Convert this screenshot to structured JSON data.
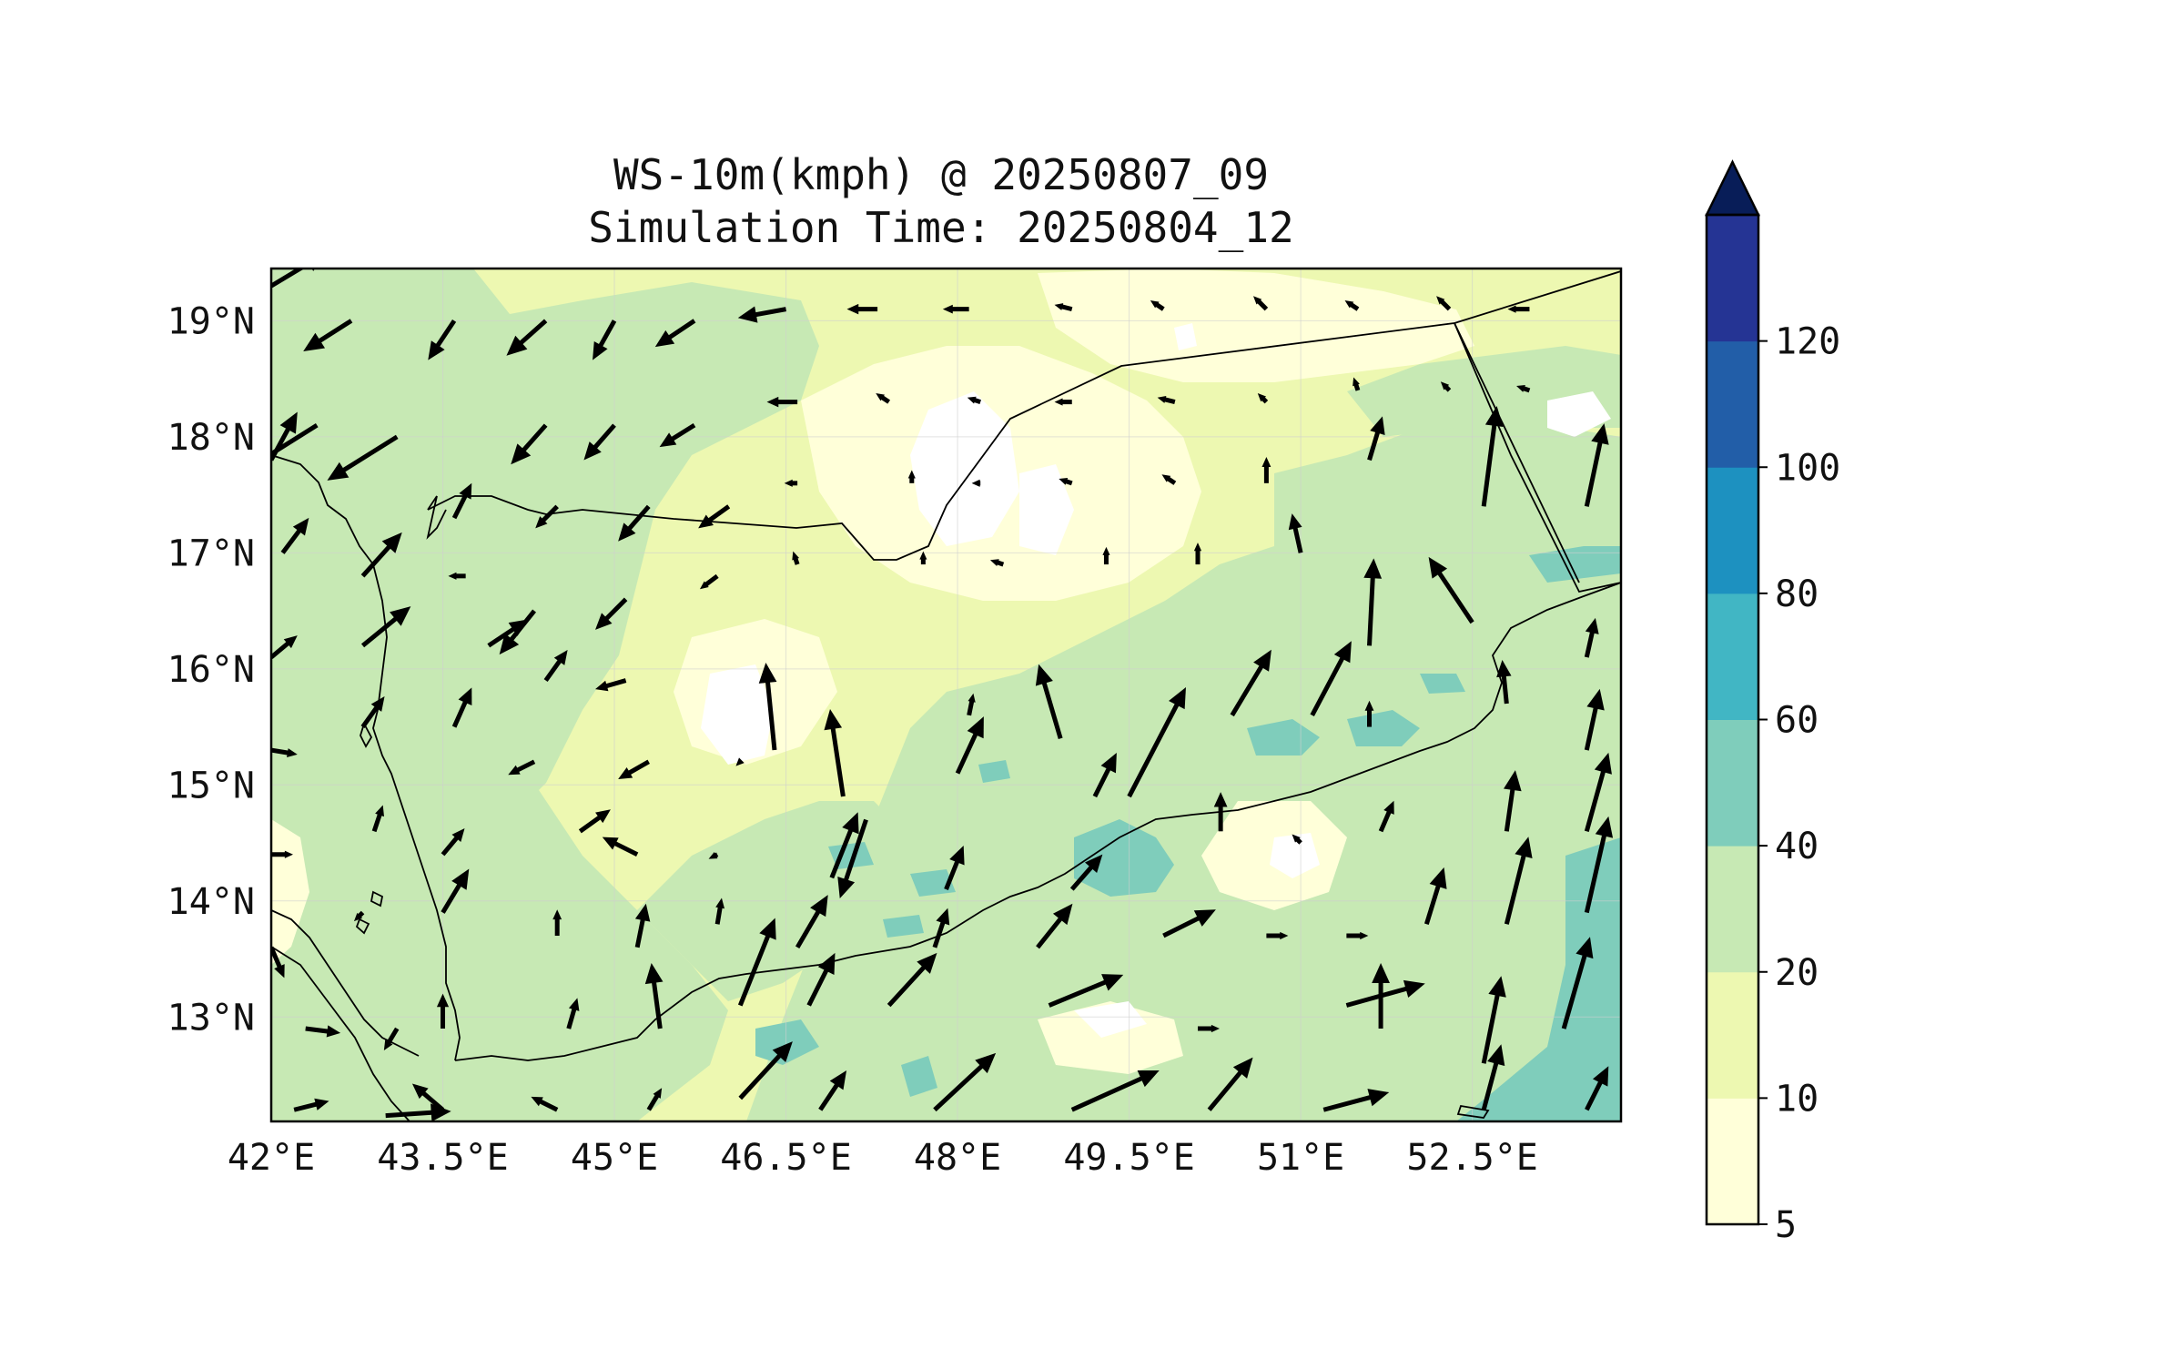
{
  "title": {
    "line1": "WS-10m(kmph) @ 20250807_09",
    "line2": "Simulation Time: 20250804_12"
  },
  "map": {
    "lon_range": [
      42.0,
      53.8
    ],
    "lat_range": [
      12.1,
      19.45
    ],
    "x_ticks": [
      {
        "lon": 42.0,
        "label": "42°E"
      },
      {
        "lon": 43.5,
        "label": "43.5°E"
      },
      {
        "lon": 45.0,
        "label": "45°E"
      },
      {
        "lon": 46.5,
        "label": "46.5°E"
      },
      {
        "lon": 48.0,
        "label": "48°E"
      },
      {
        "lon": 49.5,
        "label": "49.5°E"
      },
      {
        "lon": 51.0,
        "label": "51°E"
      },
      {
        "lon": 52.5,
        "label": "52.5°E"
      }
    ],
    "y_ticks": [
      {
        "lat": 13,
        "label": "13°N"
      },
      {
        "lat": 14,
        "label": "14°N"
      },
      {
        "lat": 15,
        "label": "15°N"
      },
      {
        "lat": 16,
        "label": "16°N"
      },
      {
        "lat": 17,
        "label": "17°N"
      },
      {
        "lat": 18,
        "label": "18°N"
      },
      {
        "lat": 19,
        "label": "19°N"
      }
    ]
  },
  "colorbar": {
    "levels": [
      5,
      10,
      20,
      40,
      60,
      80,
      100,
      120
    ],
    "labels": [
      "5",
      "10",
      "20",
      "40",
      "60",
      "80",
      "100",
      "120"
    ],
    "colors": [
      "#ffffd9",
      "#edf8b1",
      "#c7e9b4",
      "#7fcdbb",
      "#41b6c4",
      "#1d91c0",
      "#225ea8",
      "#253494"
    ],
    "extend_color": "#081d58"
  },
  "chart_data": {
    "type": "heatmap",
    "variable": "10 m wind speed (kmph) with wind vectors",
    "valid_time": "20250807_09",
    "simulation_time": "20250804_12",
    "wind_vectors_note": "approximate u/v in kmph, read from arrows",
    "vectors": [
      {
        "lon": 42.0,
        "lat": 19.3,
        "u": 25,
        "v": 15
      },
      {
        "lon": 42.7,
        "lat": 19.0,
        "u": -22,
        "v": -14
      },
      {
        "lon": 43.6,
        "lat": 19.0,
        "u": -12,
        "v": -18
      },
      {
        "lon": 44.4,
        "lat": 19.0,
        "u": -18,
        "v": -16
      },
      {
        "lon": 45.0,
        "lat": 19.0,
        "u": -10,
        "v": -18
      },
      {
        "lon": 45.7,
        "lat": 19.0,
        "u": -18,
        "v": -12
      },
      {
        "lon": 46.5,
        "lat": 19.1,
        "u": -22,
        "v": -4
      },
      {
        "lon": 47.3,
        "lat": 19.1,
        "u": -14,
        "v": 0
      },
      {
        "lon": 48.1,
        "lat": 19.1,
        "u": -12,
        "v": 0
      },
      {
        "lon": 49.0,
        "lat": 19.1,
        "u": -8,
        "v": 2
      },
      {
        "lon": 49.8,
        "lat": 19.1,
        "u": -6,
        "v": 4
      },
      {
        "lon": 50.7,
        "lat": 19.1,
        "u": -6,
        "v": 6
      },
      {
        "lon": 51.5,
        "lat": 19.1,
        "u": -6,
        "v": 4
      },
      {
        "lon": 52.3,
        "lat": 19.1,
        "u": -6,
        "v": 6
      },
      {
        "lon": 53.0,
        "lat": 19.1,
        "u": -10,
        "v": 0
      },
      {
        "lon": 42.4,
        "lat": 18.1,
        "u": -35,
        "v": -22
      },
      {
        "lon": 43.1,
        "lat": 18.0,
        "u": -32,
        "v": -20
      },
      {
        "lon": 44.4,
        "lat": 18.1,
        "u": -16,
        "v": -18
      },
      {
        "lon": 45.0,
        "lat": 18.1,
        "u": -14,
        "v": -16
      },
      {
        "lon": 45.7,
        "lat": 18.1,
        "u": -16,
        "v": -10
      },
      {
        "lon": 46.6,
        "lat": 18.3,
        "u": -14,
        "v": 0
      },
      {
        "lon": 47.4,
        "lat": 18.3,
        "u": -6,
        "v": 4
      },
      {
        "lon": 48.2,
        "lat": 18.3,
        "u": -6,
        "v": 2
      },
      {
        "lon": 49.0,
        "lat": 18.3,
        "u": -8,
        "v": 0
      },
      {
        "lon": 49.9,
        "lat": 18.3,
        "u": -8,
        "v": 2
      },
      {
        "lon": 50.7,
        "lat": 18.3,
        "u": -4,
        "v": 4
      },
      {
        "lon": 51.5,
        "lat": 18.4,
        "u": -2,
        "v": 6
      },
      {
        "lon": 52.3,
        "lat": 18.4,
        "u": -4,
        "v": 4
      },
      {
        "lon": 53.0,
        "lat": 18.4,
        "u": -6,
        "v": 2
      },
      {
        "lon": 42.0,
        "lat": 17.8,
        "u": 12,
        "v": 22
      },
      {
        "lon": 43.6,
        "lat": 17.3,
        "u": 8,
        "v": 16
      },
      {
        "lon": 44.5,
        "lat": 17.4,
        "u": -10,
        "v": -10
      },
      {
        "lon": 45.3,
        "lat": 17.4,
        "u": -14,
        "v": -16
      },
      {
        "lon": 46.0,
        "lat": 17.4,
        "u": -14,
        "v": -10
      },
      {
        "lon": 46.6,
        "lat": 17.6,
        "u": -6,
        "v": 0
      },
      {
        "lon": 47.6,
        "lat": 17.6,
        "u": 0,
        "v": 6
      },
      {
        "lon": 48.2,
        "lat": 17.6,
        "u": -4,
        "v": 0
      },
      {
        "lon": 49.0,
        "lat": 17.6,
        "u": -6,
        "v": 2
      },
      {
        "lon": 49.9,
        "lat": 17.6,
        "u": -6,
        "v": 4
      },
      {
        "lon": 50.7,
        "lat": 17.6,
        "u": 0,
        "v": 12
      },
      {
        "lon": 51.6,
        "lat": 17.8,
        "u": 6,
        "v": 20
      },
      {
        "lon": 52.6,
        "lat": 17.4,
        "u": 6,
        "v": 46
      },
      {
        "lon": 53.5,
        "lat": 17.4,
        "u": 8,
        "v": 38
      },
      {
        "lon": 42.1,
        "lat": 17.0,
        "u": 12,
        "v": 16
      },
      {
        "lon": 42.8,
        "lat": 16.8,
        "u": 18,
        "v": 20
      },
      {
        "lon": 43.7,
        "lat": 16.8,
        "u": -8,
        "v": 0
      },
      {
        "lon": 44.3,
        "lat": 16.5,
        "u": -16,
        "v": -20
      },
      {
        "lon": 45.1,
        "lat": 16.6,
        "u": -14,
        "v": -14
      },
      {
        "lon": 45.9,
        "lat": 16.8,
        "u": -8,
        "v": -6
      },
      {
        "lon": 46.6,
        "lat": 16.9,
        "u": -2,
        "v": 6
      },
      {
        "lon": 47.7,
        "lat": 16.9,
        "u": 0,
        "v": 6
      },
      {
        "lon": 48.4,
        "lat": 16.9,
        "u": -6,
        "v": 2
      },
      {
        "lon": 49.3,
        "lat": 16.9,
        "u": 0,
        "v": 8
      },
      {
        "lon": 50.1,
        "lat": 16.9,
        "u": 0,
        "v": 10
      },
      {
        "lon": 51.0,
        "lat": 17.0,
        "u": -4,
        "v": 18
      },
      {
        "lon": 51.6,
        "lat": 16.2,
        "u": 2,
        "v": 40
      },
      {
        "lon": 52.5,
        "lat": 16.4,
        "u": -20,
        "v": 30
      },
      {
        "lon": 53.5,
        "lat": 16.1,
        "u": 4,
        "v": 18
      },
      {
        "lon": 42.0,
        "lat": 16.1,
        "u": 12,
        "v": 10
      },
      {
        "lon": 42.8,
        "lat": 16.2,
        "u": 22,
        "v": 18
      },
      {
        "lon": 43.9,
        "lat": 16.2,
        "u": 18,
        "v": 12
      },
      {
        "lon": 44.4,
        "lat": 15.9,
        "u": 10,
        "v": 14
      },
      {
        "lon": 45.1,
        "lat": 15.9,
        "u": -14,
        "v": -4
      },
      {
        "lon": 46.4,
        "lat": 15.3,
        "u": -4,
        "v": 40
      },
      {
        "lon": 47.0,
        "lat": 14.9,
        "u": -6,
        "v": 40
      },
      {
        "lon": 48.1,
        "lat": 15.6,
        "u": 2,
        "v": 10
      },
      {
        "lon": 48.9,
        "lat": 15.4,
        "u": -10,
        "v": 34
      },
      {
        "lon": 49.5,
        "lat": 14.9,
        "u": 26,
        "v": 50
      },
      {
        "lon": 50.4,
        "lat": 15.6,
        "u": 18,
        "v": 30
      },
      {
        "lon": 51.1,
        "lat": 15.6,
        "u": 18,
        "v": 34
      },
      {
        "lon": 51.6,
        "lat": 15.5,
        "u": 0,
        "v": 12
      },
      {
        "lon": 52.8,
        "lat": 15.7,
        "u": -2,
        "v": 20
      },
      {
        "lon": 53.5,
        "lat": 15.3,
        "u": 6,
        "v": 28
      },
      {
        "lon": 42.0,
        "lat": 15.3,
        "u": 12,
        "v": -2
      },
      {
        "lon": 42.8,
        "lat": 15.5,
        "u": 10,
        "v": 14
      },
      {
        "lon": 43.6,
        "lat": 15.5,
        "u": 8,
        "v": 18
      },
      {
        "lon": 44.3,
        "lat": 15.2,
        "u": -12,
        "v": -6
      },
      {
        "lon": 45.3,
        "lat": 15.2,
        "u": -14,
        "v": -8
      },
      {
        "lon": 46.1,
        "lat": 15.2,
        "u": -2,
        "v": -2
      },
      {
        "lon": 47.2,
        "lat": 14.7,
        "u": -12,
        "v": -36
      },
      {
        "lon": 48.0,
        "lat": 15.1,
        "u": 12,
        "v": 26
      },
      {
        "lon": 49.2,
        "lat": 14.9,
        "u": 10,
        "v": 20
      },
      {
        "lon": 51.7,
        "lat": 14.6,
        "u": 6,
        "v": 14
      },
      {
        "lon": 52.8,
        "lat": 14.6,
        "u": 4,
        "v": 28
      },
      {
        "lon": 53.5,
        "lat": 14.6,
        "u": 10,
        "v": 36
      },
      {
        "lon": 42.0,
        "lat": 14.4,
        "u": 10,
        "v": 0
      },
      {
        "lon": 42.9,
        "lat": 14.6,
        "u": 4,
        "v": 12
      },
      {
        "lon": 43.5,
        "lat": 14.4,
        "u": 10,
        "v": 12
      },
      {
        "lon": 44.7,
        "lat": 14.6,
        "u": 14,
        "v": 10
      },
      {
        "lon": 45.2,
        "lat": 14.4,
        "u": -16,
        "v": 8
      },
      {
        "lon": 45.9,
        "lat": 14.4,
        "u": -4,
        "v": -2
      },
      {
        "lon": 46.9,
        "lat": 14.2,
        "u": 12,
        "v": 30
      },
      {
        "lon": 47.9,
        "lat": 14.1,
        "u": 8,
        "v": 20
      },
      {
        "lon": 49.0,
        "lat": 14.1,
        "u": 14,
        "v": 16
      },
      {
        "lon": 50.3,
        "lat": 14.6,
        "u": 0,
        "v": 18
      },
      {
        "lon": 51.0,
        "lat": 14.5,
        "u": -4,
        "v": 4
      },
      {
        "lon": 42.0,
        "lat": 13.6,
        "u": 6,
        "v": -14
      },
      {
        "lon": 42.8,
        "lat": 13.9,
        "u": -4,
        "v": -4
      },
      {
        "lon": 43.5,
        "lat": 13.9,
        "u": 12,
        "v": 20
      },
      {
        "lon": 44.5,
        "lat": 13.7,
        "u": 0,
        "v": 12
      },
      {
        "lon": 45.2,
        "lat": 13.6,
        "u": 4,
        "v": 20
      },
      {
        "lon": 45.9,
        "lat": 13.8,
        "u": 2,
        "v": 12
      },
      {
        "lon": 46.6,
        "lat": 13.6,
        "u": 14,
        "v": 24
      },
      {
        "lon": 47.8,
        "lat": 13.6,
        "u": 6,
        "v": 18
      },
      {
        "lon": 48.7,
        "lat": 13.6,
        "u": 16,
        "v": 20
      },
      {
        "lon": 49.8,
        "lat": 13.7,
        "u": 24,
        "v": 12
      },
      {
        "lon": 50.7,
        "lat": 13.7,
        "u": 10,
        "v": 0
      },
      {
        "lon": 51.4,
        "lat": 13.7,
        "u": 10,
        "v": 0
      },
      {
        "lon": 52.1,
        "lat": 13.8,
        "u": 8,
        "v": 26
      },
      {
        "lon": 52.8,
        "lat": 13.8,
        "u": 10,
        "v": 40
      },
      {
        "lon": 53.5,
        "lat": 13.9,
        "u": 10,
        "v": 44
      },
      {
        "lon": 42.3,
        "lat": 12.9,
        "u": 16,
        "v": -2
      },
      {
        "lon": 43.1,
        "lat": 12.9,
        "u": -6,
        "v": -10
      },
      {
        "lon": 43.5,
        "lat": 12.9,
        "u": 0,
        "v": 16
      },
      {
        "lon": 44.6,
        "lat": 12.9,
        "u": 4,
        "v": 14
      },
      {
        "lon": 45.4,
        "lat": 12.9,
        "u": -4,
        "v": 30
      },
      {
        "lon": 46.1,
        "lat": 13.1,
        "u": 16,
        "v": 40
      },
      {
        "lon": 46.7,
        "lat": 13.1,
        "u": 12,
        "v": 24
      },
      {
        "lon": 47.4,
        "lat": 13.1,
        "u": 22,
        "v": 24
      },
      {
        "lon": 48.8,
        "lat": 13.1,
        "u": 34,
        "v": 14
      },
      {
        "lon": 50.1,
        "lat": 12.9,
        "u": 10,
        "v": 0
      },
      {
        "lon": 51.4,
        "lat": 13.1,
        "u": 36,
        "v": 10
      },
      {
        "lon": 51.7,
        "lat": 12.9,
        "u": 0,
        "v": 30
      },
      {
        "lon": 52.6,
        "lat": 12.6,
        "u": 8,
        "v": 40
      },
      {
        "lon": 53.3,
        "lat": 12.9,
        "u": 12,
        "v": 42
      },
      {
        "lon": 42.2,
        "lat": 12.2,
        "u": 16,
        "v": 4
      },
      {
        "lon": 43.0,
        "lat": 12.15,
        "u": 30,
        "v": 2
      },
      {
        "lon": 43.5,
        "lat": 12.2,
        "u": -14,
        "v": 12
      },
      {
        "lon": 44.5,
        "lat": 12.2,
        "u": -12,
        "v": 6
      },
      {
        "lon": 45.3,
        "lat": 12.2,
        "u": 6,
        "v": 10
      },
      {
        "lon": 46.1,
        "lat": 12.3,
        "u": 24,
        "v": 26
      },
      {
        "lon": 46.8,
        "lat": 12.2,
        "u": 12,
        "v": 18
      },
      {
        "lon": 47.8,
        "lat": 12.2,
        "u": 28,
        "v": 26
      },
      {
        "lon": 49.0,
        "lat": 12.2,
        "u": 40,
        "v": 18
      },
      {
        "lon": 50.2,
        "lat": 12.2,
        "u": 20,
        "v": 24
      },
      {
        "lon": 51.2,
        "lat": 12.2,
        "u": 30,
        "v": 8
      },
      {
        "lon": 52.6,
        "lat": 12.2,
        "u": 8,
        "v": 30
      },
      {
        "lon": 53.5,
        "lat": 12.2,
        "u": 10,
        "v": 20
      }
    ]
  }
}
